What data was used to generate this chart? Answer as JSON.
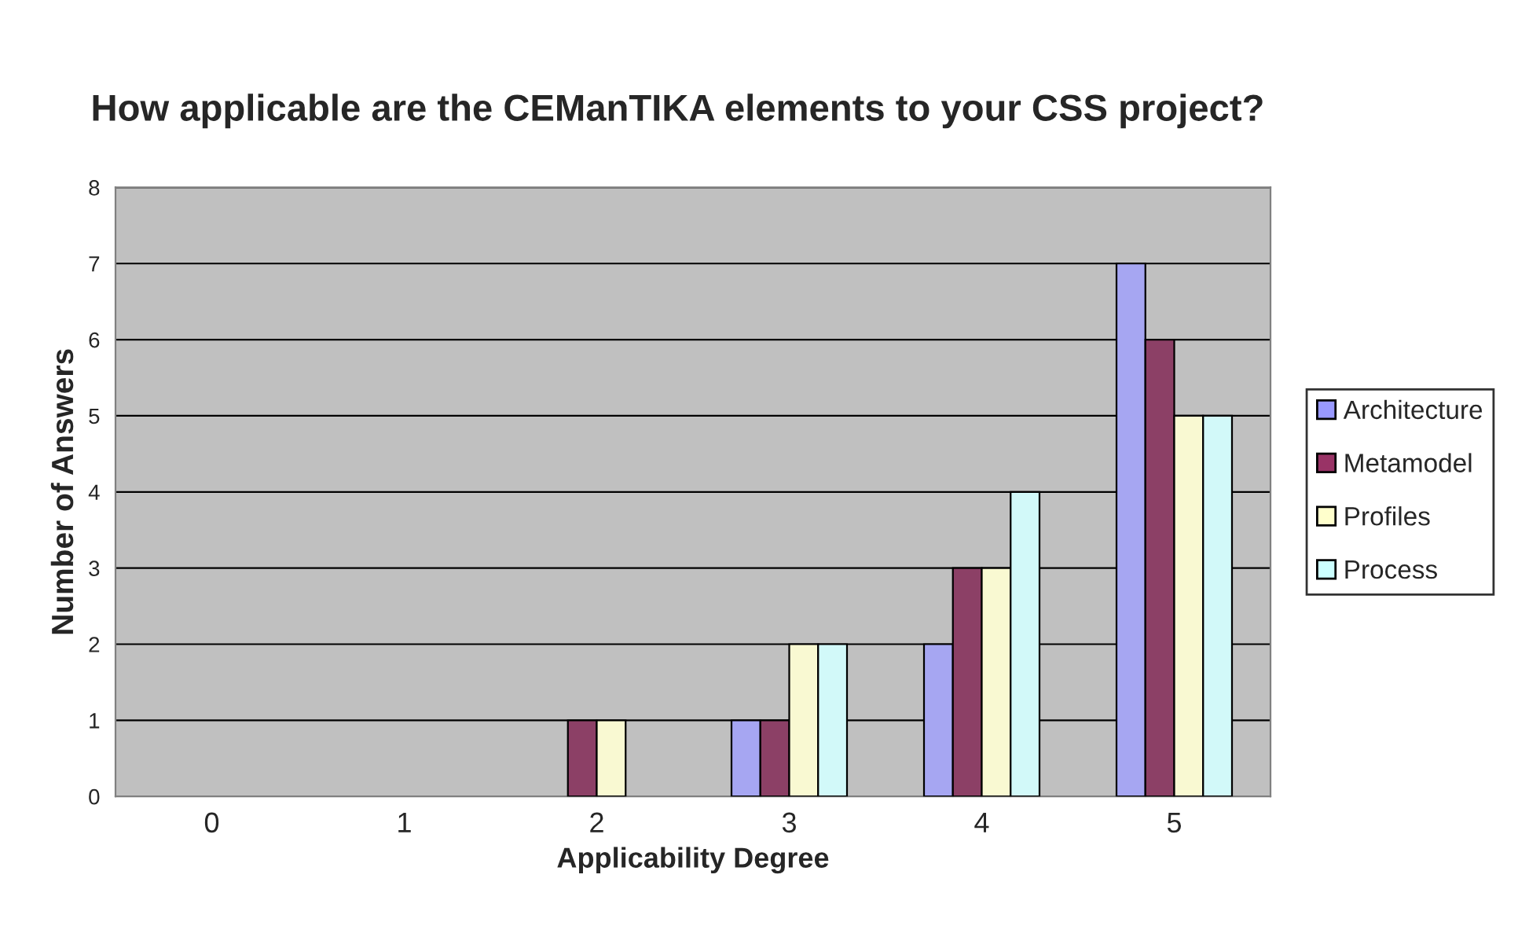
{
  "chart_data": {
    "type": "bar",
    "title": "How applicable are the CEManTIKA elements to your CSS project?",
    "xlabel": "Applicability Degree",
    "ylabel": "Number of Answers",
    "categories": [
      "0",
      "1",
      "2",
      "3",
      "4",
      "5"
    ],
    "series": [
      {
        "name": "Architecture",
        "color": "#9999ff",
        "values": [
          0,
          0,
          0,
          1,
          2,
          7
        ]
      },
      {
        "name": "Metamodel",
        "color": "#993366",
        "values": [
          0,
          0,
          1,
          1,
          3,
          6
        ]
      },
      {
        "name": "Profiles",
        "color": "#ffffcc",
        "values": [
          0,
          0,
          1,
          2,
          3,
          5
        ]
      },
      {
        "name": "Process",
        "color": "#ccffff",
        "values": [
          0,
          0,
          0,
          2,
          4,
          5
        ]
      }
    ],
    "ylim": [
      0,
      8
    ],
    "yticks": [
      0,
      1,
      2,
      3,
      4,
      5,
      6,
      7,
      8
    ],
    "grid": "y",
    "legend": "right"
  }
}
